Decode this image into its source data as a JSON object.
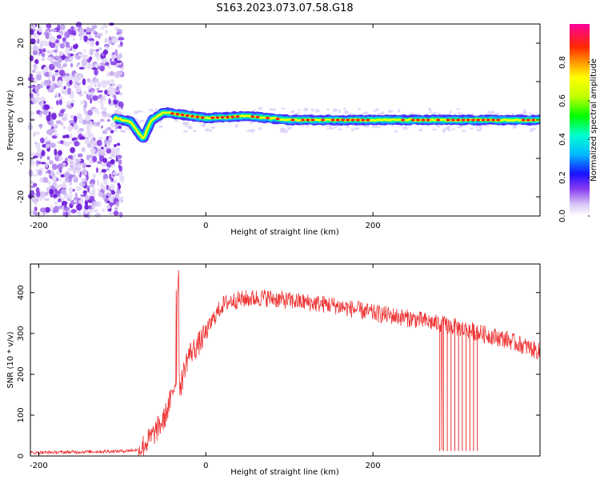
{
  "title": "S163.2023.073.07.58.G18",
  "chart_data": [
    {
      "type": "heatmap",
      "xlabel": "Height of straight line (km)",
      "ylabel": "Frequency (Hz)",
      "xlim": [
        -210,
        400
      ],
      "ylim": [
        -25,
        25
      ],
      "x_ticks": [
        -200,
        0,
        200
      ],
      "y_ticks": [
        20,
        10,
        0,
        -10,
        -20
      ],
      "colorbar": {
        "label": "Normalized spectral amplitude",
        "ticks": [
          "0.0",
          "0.2",
          "0.4",
          "0.6",
          "0.8"
        ],
        "range": [
          0,
          1
        ]
      },
      "description_ridge_hz": [
        {
          "x": -108,
          "y": 0.5
        },
        {
          "x": -90,
          "y": -0.5
        },
        {
          "x": -75,
          "y": -5
        },
        {
          "x": -65,
          "y": 0
        },
        {
          "x": -50,
          "y": 2
        },
        {
          "x": 0,
          "y": 0.5
        },
        {
          "x": 50,
          "y": 1
        },
        {
          "x": 100,
          "y": 0
        },
        {
          "x": 200,
          "y": 0
        },
        {
          "x": 300,
          "y": 0
        },
        {
          "x": 400,
          "y": 0
        }
      ]
    },
    {
      "type": "line",
      "xlabel": "Height of straight line (km)",
      "ylabel": "SNR (10 * v/v)",
      "xlim": [
        -210,
        400
      ],
      "ylim": [
        0,
        470
      ],
      "x_ticks": [
        -200,
        0,
        200
      ],
      "y_ticks": [
        0,
        100,
        200,
        300,
        400
      ],
      "series": [
        {
          "color": "#ee3333",
          "x": [
            -210,
            -150,
            -100,
            -80,
            -70,
            -60,
            -50,
            -40,
            -35,
            -30,
            -25,
            -20,
            -10,
            0,
            10,
            20,
            30,
            50,
            70,
            100,
            150,
            200,
            250,
            300,
            330,
            360,
            400
          ],
          "values": [
            8,
            10,
            12,
            15,
            35,
            60,
            90,
            150,
            200,
            170,
            220,
            250,
            270,
            300,
            340,
            370,
            380,
            385,
            388,
            380,
            370,
            350,
            335,
            315,
            300,
            285,
            255
          ]
        }
      ]
    }
  ]
}
